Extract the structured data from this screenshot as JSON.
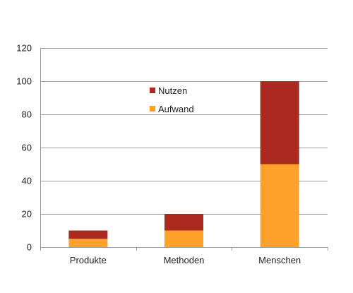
{
  "chart_data": {
    "type": "bar",
    "stacked": true,
    "categories": [
      "Produkte",
      "Methoden",
      "Menschen"
    ],
    "series": [
      {
        "name": "Aufwand",
        "values": [
          5,
          10,
          50
        ],
        "color": "#FFA12A"
      },
      {
        "name": "Nutzen",
        "values": [
          5,
          10,
          50
        ],
        "color": "#AB2A1F"
      }
    ],
    "ylim": [
      0,
      120
    ],
    "yticks": [
      0,
      20,
      40,
      60,
      80,
      100,
      120
    ],
    "grid": true,
    "legend": {
      "position": "inside-center",
      "order": [
        "Nutzen",
        "Aufwand"
      ]
    }
  }
}
